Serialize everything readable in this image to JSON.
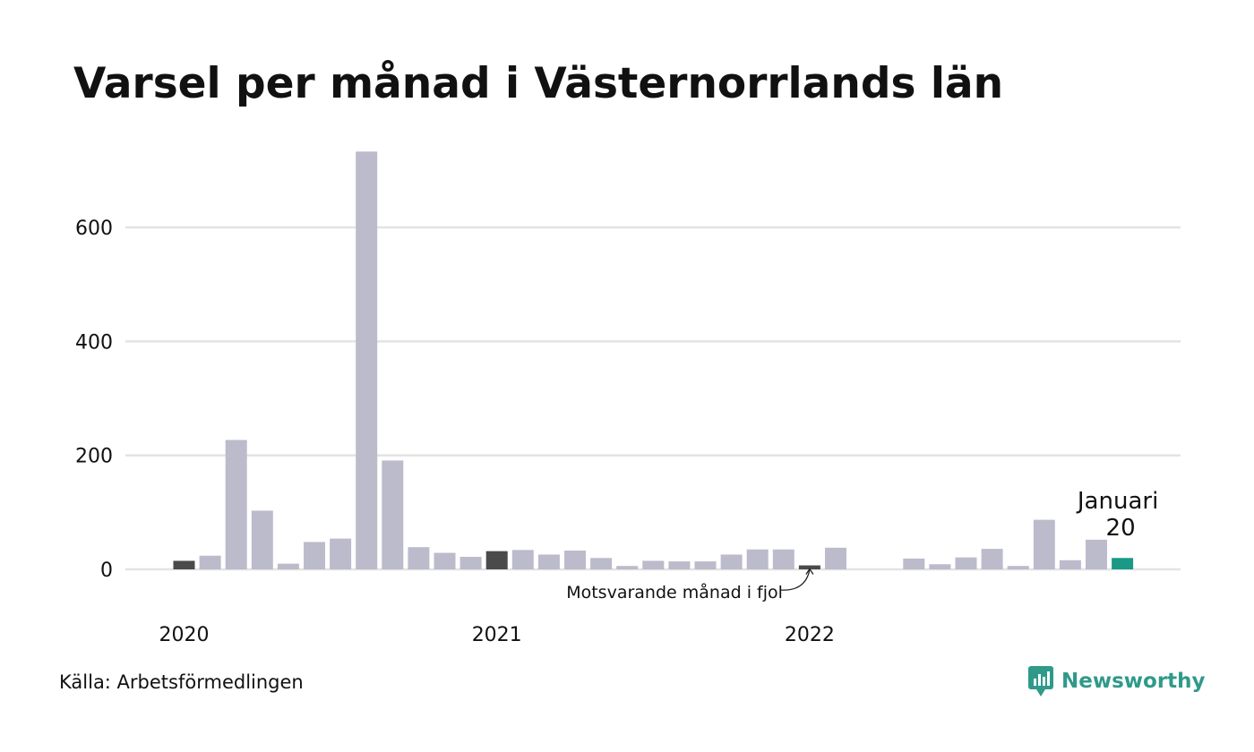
{
  "title": "Varsel per månad i Västernorrlands län",
  "source": "Källa: Arbetsförmedlingen",
  "brand": {
    "name": "Newsworthy",
    "icon": "newsworthy-logo-icon",
    "color": "#2f9a8a"
  },
  "chart_data": {
    "type": "bar",
    "title": "Varsel per månad i Västernorrlands län",
    "xlabel": "",
    "ylabel": "",
    "ylim": [
      0,
      740
    ],
    "yticks": [
      0,
      200,
      400,
      600
    ],
    "grid": true,
    "x_tick_labels": [
      {
        "label": "2020",
        "index": 0
      },
      {
        "label": "2021",
        "index": 12
      },
      {
        "label": "2022",
        "index": 24
      }
    ],
    "categories": [
      "2020-01",
      "2020-02",
      "2020-03",
      "2020-04",
      "2020-05",
      "2020-06",
      "2020-07",
      "2020-08",
      "2020-09",
      "2020-10",
      "2020-11",
      "2020-12",
      "2021-01",
      "2021-02",
      "2021-03",
      "2021-04",
      "2021-05",
      "2021-06",
      "2021-07",
      "2021-08",
      "2021-09",
      "2021-10",
      "2021-11",
      "2021-12",
      "2022-01",
      "2022-02",
      "2022-03",
      "2022-04",
      "2022-05",
      "2022-06",
      "2022-07",
      "2022-08",
      "2022-09",
      "2022-10",
      "2022-11",
      "2022-12",
      "2023-01"
    ],
    "values": [
      15,
      24,
      227,
      103,
      10,
      48,
      54,
      733,
      191,
      39,
      29,
      22,
      32,
      34,
      26,
      33,
      20,
      6,
      15,
      14,
      14,
      26,
      35,
      35,
      7,
      38,
      0,
      0,
      19,
      9,
      21,
      36,
      6,
      87,
      16,
      52,
      20
    ],
    "highlight": {
      "current_index": 36,
      "current_color": "#1a9987",
      "previous_year_indices": [
        0,
        12,
        24
      ],
      "previous_year_color": "#4a4a4a",
      "default_color": "#bcbbcb"
    },
    "annotations": {
      "current_label": "Januari",
      "current_value": "20",
      "previous_label": "Motsvarande månad i fjol"
    }
  }
}
